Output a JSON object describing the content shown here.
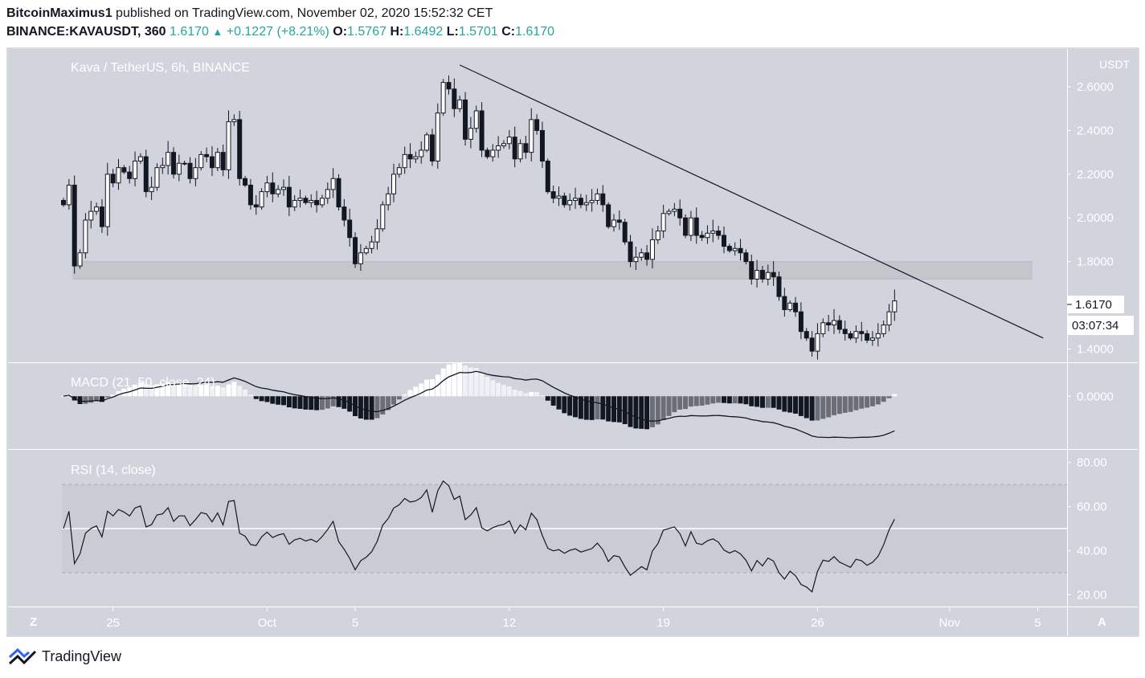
{
  "header": {
    "author": "BitcoinMaximus1",
    "published": "published on TradingView.com, November 02, 2020 15:52:32 CET",
    "symbol": "BINANCE:KAVAUSDT, 360",
    "last": "1.6170",
    "arrow": "▲",
    "change": "+0.1227 (+8.21%)",
    "o_label": "O:",
    "o": "1.5767",
    "h_label": "H:",
    "h": "1.6492",
    "l_label": "L:",
    "l": "1.5701",
    "c_label": "C:",
    "c": "1.6170"
  },
  "brand": {
    "name": "TradingView"
  },
  "colors": {
    "panel_bg": "#d1d4dc",
    "candle_dark": "#131722",
    "candle_light": "#ffffff",
    "text_light": "#ffffff",
    "support_zone": "#c4c6cc"
  },
  "chart_data": [
    {
      "type": "candlestick",
      "title": "Kava / TetherUS, 6h, BINANCE",
      "y_unit": "USDT",
      "ylim": [
        1.35,
        2.74
      ],
      "y_ticks": [
        1.4,
        1.6,
        1.8,
        2.0,
        2.2,
        2.4,
        2.6
      ],
      "y_tick_labels": [
        "1.4000",
        "1.6000",
        "1.8000",
        "2.0000",
        "2.2000",
        "2.4000",
        "2.6000"
      ],
      "x_ticks": [
        {
          "label": "25",
          "index": 9
        },
        {
          "label": "Oct",
          "index": 37
        },
        {
          "label": "5",
          "index": 53
        },
        {
          "label": "12",
          "index": 81
        },
        {
          "label": "19",
          "index": 109
        },
        {
          "label": "26",
          "index": 137
        },
        {
          "label": "Nov",
          "index": 161
        },
        {
          "label": "5",
          "index": 177
        }
      ],
      "closes": [
        2.06,
        2.15,
        1.78,
        1.84,
        1.99,
        2.03,
        2.05,
        1.96,
        2.2,
        2.16,
        2.23,
        2.21,
        2.18,
        2.26,
        2.28,
        2.12,
        2.14,
        2.23,
        2.24,
        2.3,
        2.2,
        2.25,
        2.25,
        2.18,
        2.23,
        2.29,
        2.28,
        2.23,
        2.3,
        2.22,
        2.44,
        2.45,
        2.18,
        2.15,
        2.06,
        2.05,
        2.12,
        2.16,
        2.11,
        2.13,
        2.14,
        2.05,
        2.08,
        2.09,
        2.07,
        2.08,
        2.06,
        2.09,
        2.13,
        2.18,
        2.05,
        1.99,
        1.91,
        1.79,
        1.84,
        1.86,
        1.89,
        1.95,
        2.06,
        2.11,
        2.2,
        2.23,
        2.29,
        2.27,
        2.28,
        2.31,
        2.38,
        2.26,
        2.48,
        2.62,
        2.59,
        2.5,
        2.54,
        2.36,
        2.41,
        2.49,
        2.31,
        2.28,
        2.31,
        2.33,
        2.34,
        2.37,
        2.27,
        2.34,
        2.3,
        2.45,
        2.4,
        2.26,
        2.12,
        2.09,
        2.1,
        2.06,
        2.08,
        2.09,
        2.06,
        2.07,
        2.08,
        2.11,
        2.06,
        1.96,
        1.99,
        1.98,
        1.89,
        1.8,
        1.82,
        1.84,
        1.81,
        1.9,
        1.94,
        2.02,
        2.03,
        2.04,
        2.0,
        1.92,
        2.0,
        1.92,
        1.91,
        1.93,
        1.94,
        1.92,
        1.87,
        1.85,
        1.86,
        1.84,
        1.8,
        1.72,
        1.76,
        1.72,
        1.75,
        1.73,
        1.64,
        1.58,
        1.61,
        1.57,
        1.48,
        1.45,
        1.39,
        1.47,
        1.52,
        1.51,
        1.53,
        1.49,
        1.47,
        1.45,
        1.48,
        1.47,
        1.44,
        1.45,
        1.47,
        1.51,
        1.57,
        1.62
      ],
      "support_zone": [
        1.72,
        1.8
      ],
      "trendline": {
        "from_index": 72,
        "from_price": 2.7,
        "to_index": 178,
        "to_price": 1.45
      },
      "last_price_label": "1.6170",
      "countdown": "03:07:34"
    },
    {
      "type": "macd",
      "title": "MACD (21, 50, close, 24)",
      "y_ticks": [
        0.0
      ],
      "y_tick_labels": [
        "0.0000"
      ],
      "ylim": [
        -0.22,
        0.13
      ]
    },
    {
      "type": "line",
      "title": "RSI (14, close)",
      "ylim": [
        15,
        85
      ],
      "y_ticks": [
        20,
        40,
        60,
        80
      ],
      "y_tick_labels": [
        "20.00",
        "40.00",
        "60.00",
        "80.00"
      ],
      "bands": [
        30,
        70
      ],
      "mid_line": 50
    }
  ]
}
